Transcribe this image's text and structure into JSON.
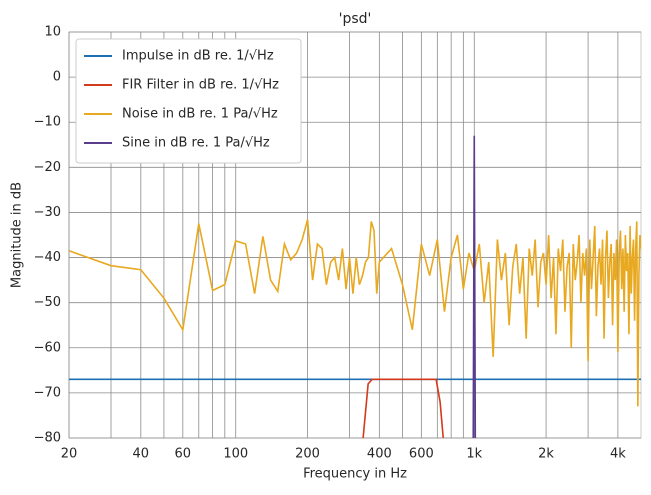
{
  "chart_data": {
    "type": "line",
    "title": "'psd'",
    "xlabel": "Frequency in Hz",
    "ylabel": "Magnitude in dB",
    "xscale": "log",
    "grid": true,
    "legend": "upper left",
    "xlim": [
      20,
      5000
    ],
    "ylim": [
      -80,
      10
    ],
    "xticks": [
      20,
      40,
      60,
      100,
      200,
      400,
      600,
      {
        "value": 1000,
        "label": "1k"
      },
      {
        "value": 2000,
        "label": "2k"
      },
      {
        "value": 4000,
        "label": "4k"
      }
    ],
    "x_minor_ticks": [
      30,
      50,
      70,
      80,
      90,
      300,
      500,
      700,
      800,
      900,
      3000
    ],
    "yticks": [
      {
        "value": -80,
        "label": "−80"
      },
      {
        "value": -70,
        "label": "−70"
      },
      {
        "value": -60,
        "label": "−60"
      },
      {
        "value": -50,
        "label": "−50"
      },
      {
        "value": -40,
        "label": "−40"
      },
      {
        "value": -30,
        "label": "−30"
      },
      {
        "value": -20,
        "label": "−20"
      },
      {
        "value": -10,
        "label": "−10"
      },
      0,
      10
    ],
    "series": [
      {
        "name": "Impulse in dB re. 1/√Hz",
        "color": "#1f6fb4",
        "x": [
          20,
          5000
        ],
        "values": [
          -67,
          -67
        ]
      },
      {
        "name": "FIR Filter in dB re. 1/√Hz",
        "color": "#d33a1c",
        "x": [
          342,
          359,
          373,
          692,
          719,
          741
        ],
        "values": [
          -80,
          -68,
          -67,
          -67,
          -72,
          -80
        ]
      },
      {
        "name": "Noise in dB re. 1 Pa/√Hz",
        "color": "#e8a820",
        "x": [
          20,
          30,
          40,
          50,
          60,
          70,
          80,
          90,
          100,
          110,
          120,
          130,
          140,
          150,
          160,
          170,
          180,
          190,
          200,
          210,
          220,
          230,
          240,
          250,
          260,
          270,
          280,
          290,
          300,
          310,
          320,
          330,
          340,
          350,
          360,
          370,
          380,
          390,
          400,
          450,
          500,
          550,
          600,
          650,
          700,
          750,
          800,
          850,
          900,
          950,
          1000,
          1050,
          1100,
          1150,
          1200,
          1250,
          1300,
          1350,
          1400,
          1450,
          1500,
          1550,
          1600,
          1650,
          1700,
          1750,
          1800,
          1850,
          1900,
          1950,
          2000,
          2050,
          2100,
          2150,
          2200,
          2250,
          2300,
          2350,
          2400,
          2450,
          2500,
          2550,
          2600,
          2650,
          2700,
          2750,
          2800,
          2850,
          2900,
          2950,
          3000,
          3050,
          3100,
          3150,
          3200,
          3250,
          3300,
          3350,
          3400,
          3450,
          3500,
          3550,
          3600,
          3650,
          3700,
          3750,
          3800,
          3850,
          3900,
          3950,
          4000,
          4050,
          4100,
          4150,
          4200,
          4250,
          4300,
          4350,
          4400,
          4450,
          4500,
          4550,
          4600,
          4650,
          4700,
          4750,
          4800,
          4850,
          4900,
          4950,
          5000
        ],
        "values": [
          -38.5,
          -41.8,
          -42.7,
          -49,
          -56,
          -32.5,
          -47.3,
          -46,
          -36.3,
          -37,
          -48,
          -35.3,
          -45,
          -47.5,
          -37,
          -40.5,
          -39,
          -36,
          -31.6,
          -45,
          -37,
          -38,
          -46,
          -41,
          -40,
          -45,
          -38,
          -47,
          -40,
          -48,
          -40,
          -46,
          -44,
          -41,
          -40,
          -32,
          -34,
          -48,
          -41,
          -38,
          -46,
          -56,
          -37,
          -44,
          -36,
          -52,
          -40,
          -35,
          -47,
          -39,
          -43,
          -37,
          -50,
          -41,
          -62,
          -36,
          -45,
          -39,
          -55,
          -42,
          -37,
          -48,
          -40,
          -58,
          -38,
          -44,
          -36,
          -51,
          -41,
          -39,
          -46,
          -35,
          -49,
          -40,
          -57,
          -38,
          -43,
          -36,
          -52,
          -42,
          -39,
          -60,
          -37,
          -45,
          -41,
          -35,
          -50,
          -39,
          -44,
          -38,
          -63,
          -36,
          -47,
          -40,
          -33,
          -53,
          -42,
          -38,
          -46,
          -36,
          -58,
          -40,
          -34,
          -49,
          -41,
          -37,
          -55,
          -39,
          -45,
          -36,
          -61,
          -40,
          -34,
          -47,
          -38,
          -52,
          -35,
          -43,
          -39,
          -57,
          -33,
          -48,
          -40,
          -36,
          -54,
          -38,
          -32,
          -73,
          -44,
          -35,
          -38
        ]
      },
      {
        "name": "Sine in dB re. 1 Pa/√Hz",
        "color": "#5a3c8c",
        "x": [
          990,
          1000,
          1010
        ],
        "values": [
          -80,
          -13,
          -80
        ]
      }
    ]
  }
}
